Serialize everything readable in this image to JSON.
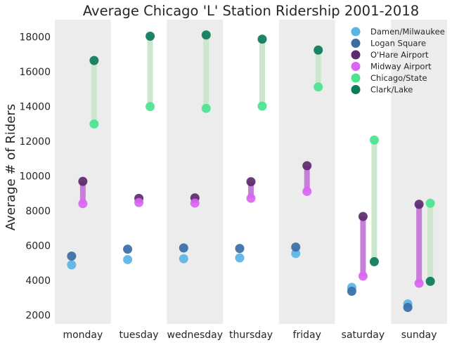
{
  "chart_data": {
    "type": "scatter",
    "title": "Average Chicago 'L' Station Ridership 2001-2018",
    "xlabel": "",
    "ylabel": "Average # of Riders",
    "categories": [
      "monday",
      "tuesday",
      "wednesday",
      "thursday",
      "friday",
      "saturday",
      "sunday"
    ],
    "ylim": [
      1500,
      19000
    ],
    "yticks": [
      2000,
      4000,
      6000,
      8000,
      10000,
      12000,
      14000,
      16000,
      18000
    ],
    "grid": false,
    "legend_position": "top-right",
    "shaded_columns": [
      "monday",
      "wednesday",
      "friday",
      "sunday"
    ],
    "series": [
      {
        "name": "Damen/Milwaukee",
        "color": "#5ab4e5",
        "offset": -1,
        "values": [
          4900,
          5200,
          5250,
          5300,
          5550,
          3600,
          2650
        ]
      },
      {
        "name": "Logan Square",
        "color": "#3a6ea5",
        "offset": -1,
        "values": [
          5400,
          5800,
          5870,
          5840,
          5920,
          3380,
          2450
        ]
      },
      {
        "name": "O'Hare Airport",
        "color": "#5c2a6e",
        "offset": 0,
        "values": [
          9700,
          8720,
          8750,
          9680,
          10600,
          7680,
          8380
        ]
      },
      {
        "name": "Midway Airport",
        "color": "#d966f2",
        "offset": 0,
        "values": [
          8420,
          8480,
          8450,
          8730,
          9120,
          4250,
          3840
        ]
      },
      {
        "name": "Chicago/State",
        "color": "#4be38e",
        "offset": 1,
        "values": [
          13000,
          14000,
          13900,
          14030,
          15130,
          12080,
          8440
        ]
      },
      {
        "name": "Clark/Lake",
        "color": "#0b7a5a",
        "offset": 1,
        "values": [
          16650,
          18050,
          18120,
          17880,
          17250,
          5080,
          3950
        ]
      }
    ],
    "ranges": [
      {
        "from": "O'Hare Airport",
        "to": "Midway Airport",
        "color": "#c77ed8"
      },
      {
        "from": "Chicago/State",
        "to": "Clark/Lake",
        "color": "#cce8cc"
      }
    ]
  }
}
